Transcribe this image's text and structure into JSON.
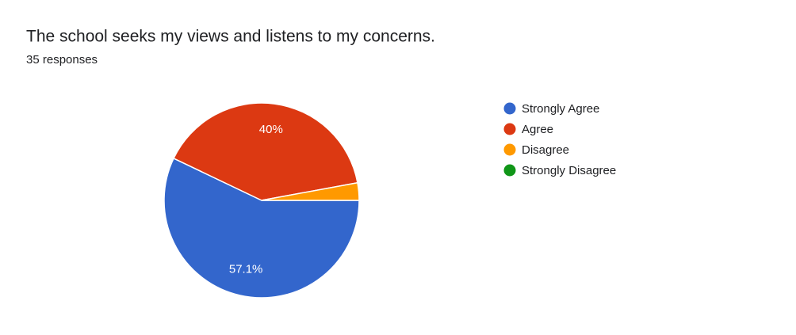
{
  "chart_data": {
    "type": "pie",
    "title": "The school seeks my views and listens to my concerns.",
    "subtitle": "35 responses",
    "categories": [
      "Strongly Agree",
      "Agree",
      "Disagree",
      "Strongly Disagree"
    ],
    "values": [
      57.1,
      40,
      2.9,
      0
    ],
    "value_labels": [
      "57.1%",
      "40%",
      null,
      null
    ],
    "colors": [
      "#3366cc",
      "#dc3912",
      "#ff9900",
      "#109618"
    ],
    "legend": "right"
  }
}
